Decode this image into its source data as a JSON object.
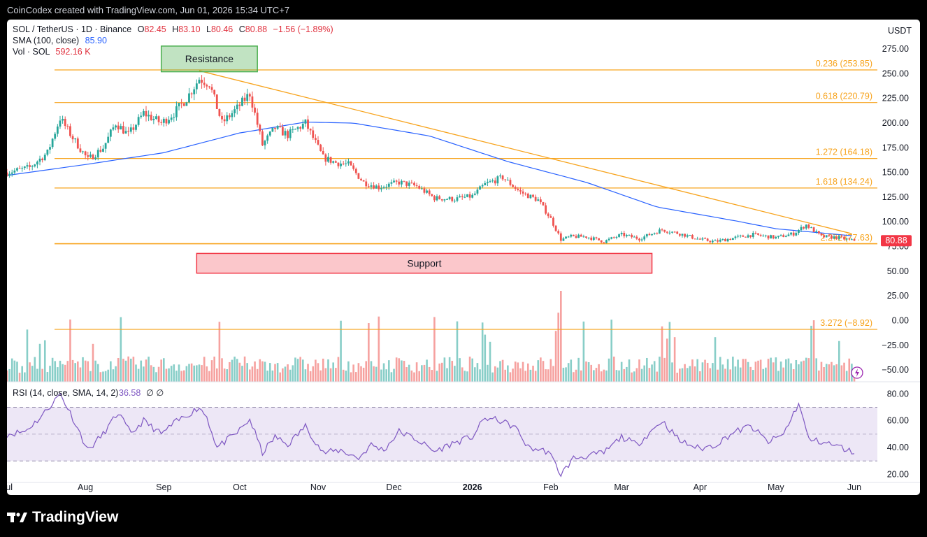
{
  "header": {
    "credit": "CoinCodex created with TradingView.com, Jun 01, 2026 15:34 UTC+7"
  },
  "legend": {
    "symbol": "SOL / TetherUS · 1D · Binance",
    "o_label": "O",
    "o_value": "82.45",
    "h_label": "H",
    "h_value": "83.10",
    "l_label": "L",
    "l_value": "80.46",
    "c_label": "C",
    "c_value": "80.88",
    "change": "−1.56 (−1.89%)",
    "sma_label": "SMA (100, close)",
    "sma_value": "85.90",
    "vol_label": "Vol · SOL",
    "vol_value": "592.16 K",
    "rsi_label": "RSI (14, close, SMA, 14, 2)",
    "rsi_value": "36.58",
    "rsi_extra": "∅ ∅"
  },
  "price_scale": {
    "currency": "USDT",
    "last_price": "80.88"
  },
  "footer": {
    "brand": "TradingView"
  },
  "colors": {
    "up": "#26a69a",
    "down": "#ef5350",
    "sma": "#2962ff",
    "fib": "#f7a31c",
    "rsi": "#7e57c2",
    "rsi_band": "#ede7f6",
    "resistance": "#4caf50",
    "support": "#f23645"
  },
  "chart_data": [
    {
      "type": "candlestick",
      "title": "SOL / TetherUS · 1D · Binance",
      "x": {
        "start": "2025-07-01",
        "end": "2026-06-01",
        "tick_labels": [
          "Jul",
          "Aug",
          "Sep",
          "Oct",
          "Nov",
          "Dec",
          "2026",
          "Feb",
          "Mar",
          "Apr",
          "May",
          "Jun"
        ]
      },
      "y": {
        "range": [
          -62,
          285
        ],
        "tick_labels": [
          "275.00",
          "250.00",
          "225.00",
          "200.00",
          "175.00",
          "150.00",
          "125.00",
          "100.00",
          "75.00",
          "50.00",
          "25.00",
          "0.00",
          "−25.00",
          "−50.00"
        ]
      },
      "close_anchors": [
        [
          "2025-07-01",
          150
        ],
        [
          "2025-07-10",
          155
        ],
        [
          "2025-07-17",
          170
        ],
        [
          "2025-07-22",
          205
        ],
        [
          "2025-07-27",
          185
        ],
        [
          "2025-08-02",
          163
        ],
        [
          "2025-08-08",
          175
        ],
        [
          "2025-08-13",
          200
        ],
        [
          "2025-08-18",
          188
        ],
        [
          "2025-08-24",
          210
        ],
        [
          "2025-08-31",
          200
        ],
        [
          "2025-09-05",
          210
        ],
        [
          "2025-09-10",
          225
        ],
        [
          "2025-09-15",
          245
        ],
        [
          "2025-09-19",
          240
        ],
        [
          "2025-09-24",
          200
        ],
        [
          "2025-09-30",
          215
        ],
        [
          "2025-10-05",
          230
        ],
        [
          "2025-10-10",
          178
        ],
        [
          "2025-10-15",
          195
        ],
        [
          "2025-10-20",
          188
        ],
        [
          "2025-10-27",
          200
        ],
        [
          "2025-11-03",
          165
        ],
        [
          "2025-11-08",
          160
        ],
        [
          "2025-11-13",
          158
        ],
        [
          "2025-11-19",
          140
        ],
        [
          "2025-11-25",
          135
        ],
        [
          "2025-12-03",
          140
        ],
        [
          "2025-12-10",
          136
        ],
        [
          "2025-12-17",
          124
        ],
        [
          "2025-12-25",
          123
        ],
        [
          "2026-01-01",
          126
        ],
        [
          "2026-01-06",
          138
        ],
        [
          "2026-01-13",
          145
        ],
        [
          "2026-01-20",
          130
        ],
        [
          "2026-01-27",
          122
        ],
        [
          "2026-02-01",
          103
        ],
        [
          "2026-02-05",
          82
        ],
        [
          "2026-02-09",
          85
        ],
        [
          "2026-02-15",
          85
        ],
        [
          "2026-02-22",
          80
        ],
        [
          "2026-03-01",
          87
        ],
        [
          "2026-03-08",
          83
        ],
        [
          "2026-03-17",
          92
        ],
        [
          "2026-03-24",
          88
        ],
        [
          "2026-04-01",
          82
        ],
        [
          "2026-04-07",
          80
        ],
        [
          "2026-04-15",
          84
        ],
        [
          "2026-04-22",
          87
        ],
        [
          "2026-05-01",
          84
        ],
        [
          "2026-05-08",
          88
        ],
        [
          "2026-05-13",
          97
        ],
        [
          "2026-05-19",
          85
        ],
        [
          "2026-05-26",
          84
        ],
        [
          "2026-05-31",
          80.88
        ]
      ],
      "sma_100": {
        "name": "SMA (100, close)",
        "anchors": [
          [
            "2025-07-01",
            147
          ],
          [
            "2025-08-01",
            158
          ],
          [
            "2025-09-01",
            170
          ],
          [
            "2025-10-01",
            190
          ],
          [
            "2025-10-27",
            201
          ],
          [
            "2025-11-15",
            200
          ],
          [
            "2025-12-15",
            187
          ],
          [
            "2026-01-15",
            161
          ],
          [
            "2026-02-15",
            140
          ],
          [
            "2026-03-15",
            115
          ],
          [
            "2026-04-15",
            101
          ],
          [
            "2026-05-01",
            93
          ],
          [
            "2026-05-31",
            85.9
          ]
        ]
      },
      "fib_levels": [
        {
          "label": "0.236 (253.85)",
          "value": 253.85
        },
        {
          "label": "0.618 (220.79)",
          "value": 220.79
        },
        {
          "label": "1.272 (164.18)",
          "value": 164.18
        },
        {
          "label": "1.618 (134.24)",
          "value": 134.24
        },
        {
          "label": "2.272 (77.63)",
          "value": 77.63
        },
        {
          "label": "3.272 (−8.92)",
          "value": -8.92
        }
      ],
      "trendline": {
        "from": [
          "2025-09-15",
          253
        ],
        "to": [
          "2026-05-31",
          88
        ]
      },
      "zones": [
        {
          "label": "Resistance",
          "x_from": "2025-08-31",
          "x_to": "2025-10-08",
          "y_low": 252,
          "y_high": 278
        },
        {
          "label": "Support",
          "x_from": "2025-09-14",
          "x_to": "2026-03-13",
          "y_low": 48,
          "y_high": 68
        }
      ],
      "volume": {
        "name": "Vol · SOL",
        "last": "592.16 K"
      }
    },
    {
      "type": "line",
      "title": "RSI (14, close, SMA, 14, 2)",
      "y": {
        "range": [
          15,
          88
        ],
        "tick_labels": [
          "80.00",
          "60.00",
          "40.00",
          "20.00"
        ]
      },
      "bands": [
        30,
        50,
        70
      ],
      "series": [
        {
          "name": "RSI",
          "anchors": [
            [
              "2025-07-01",
              50
            ],
            [
              "2025-07-08",
              52
            ],
            [
              "2025-07-14",
              62
            ],
            [
              "2025-07-22",
              80
            ],
            [
              "2025-07-26",
              66
            ],
            [
              "2025-08-02",
              38
            ],
            [
              "2025-08-08",
              50
            ],
            [
              "2025-08-14",
              66
            ],
            [
              "2025-08-19",
              50
            ],
            [
              "2025-08-24",
              60
            ],
            [
              "2025-08-31",
              50
            ],
            [
              "2025-09-05",
              58
            ],
            [
              "2025-09-10",
              64
            ],
            [
              "2025-09-15",
              70
            ],
            [
              "2025-09-18",
              63
            ],
            [
              "2025-09-22",
              40
            ],
            [
              "2025-09-30",
              51
            ],
            [
              "2025-10-05",
              61
            ],
            [
              "2025-10-10",
              36
            ],
            [
              "2025-10-15",
              48
            ],
            [
              "2025-10-20",
              42
            ],
            [
              "2025-10-27",
              56
            ],
            [
              "2025-11-03",
              36
            ],
            [
              "2025-11-10",
              38
            ],
            [
              "2025-11-17",
              32
            ],
            [
              "2025-11-22",
              42
            ],
            [
              "2025-11-27",
              38
            ],
            [
              "2025-12-03",
              52
            ],
            [
              "2025-12-10",
              46
            ],
            [
              "2025-12-17",
              37
            ],
            [
              "2025-12-24",
              43
            ],
            [
              "2026-01-01",
              48
            ],
            [
              "2026-01-06",
              62
            ],
            [
              "2026-01-12",
              60
            ],
            [
              "2026-01-18",
              55
            ],
            [
              "2026-01-23",
              40
            ],
            [
              "2026-01-31",
              37
            ],
            [
              "2026-02-05",
              20
            ],
            [
              "2026-02-10",
              32
            ],
            [
              "2026-02-16",
              34
            ],
            [
              "2026-02-22",
              36
            ],
            [
              "2026-03-01",
              48
            ],
            [
              "2026-03-07",
              42
            ],
            [
              "2026-03-17",
              60
            ],
            [
              "2026-03-24",
              45
            ],
            [
              "2026-04-01",
              39
            ],
            [
              "2026-04-07",
              42
            ],
            [
              "2026-04-14",
              51
            ],
            [
              "2026-04-21",
              56
            ],
            [
              "2026-04-28",
              44
            ],
            [
              "2026-05-04",
              50
            ],
            [
              "2026-05-10",
              73
            ],
            [
              "2026-05-14",
              46
            ],
            [
              "2026-05-20",
              44
            ],
            [
              "2026-05-27",
              40
            ],
            [
              "2026-05-31",
              36.58
            ]
          ]
        }
      ]
    }
  ]
}
